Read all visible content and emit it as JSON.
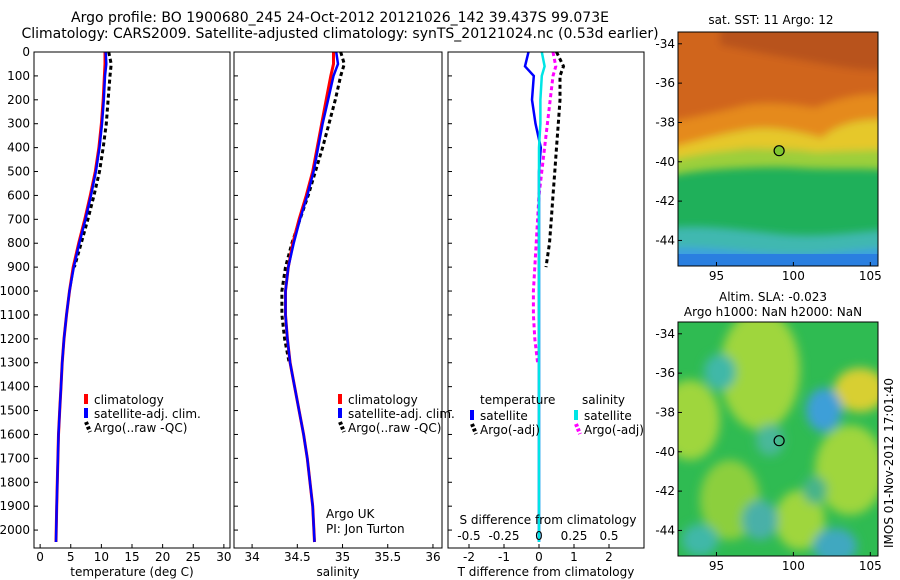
{
  "header": {
    "line1": "Argo profile: BO 1900680_245 24-Oct-2012 20121026_142 39.437S 99.073E",
    "line2": "Climatology: CARS2009. Satellite-adjusted climatology: synTS_20121024.nc (0.53d earlier)"
  },
  "colors": {
    "climatology": "#ff0000",
    "satellite": "#0000ff",
    "argo": "#000000",
    "salinity_sat": "#00e5e5",
    "salinity_argo": "#ff00ff"
  },
  "credits": {
    "line1": "Argo UK",
    "line2": "PI: Jon Turton"
  },
  "footer_vertical": "IMOS 01-Nov-2012 17:01:40",
  "chart_data": [
    {
      "type": "line",
      "xlabel": "temperature (deg C)",
      "xlim": [
        -1,
        31
      ],
      "ylim": [
        0,
        2075
      ],
      "xticks": [
        "0",
        "5",
        "10",
        "15",
        "20",
        "25",
        "30"
      ],
      "yticks": [
        "0",
        "100",
        "200",
        "300",
        "400",
        "500",
        "600",
        "700",
        "800",
        "900",
        "1000",
        "1100",
        "1200",
        "1300",
        "1400",
        "1500",
        "1600",
        "1700",
        "1800",
        "1900",
        "2000"
      ],
      "legend": [
        "climatology",
        "satellite-adj. clim.",
        "Argo(..raw -QC)"
      ],
      "series": [
        {
          "name": "climatology",
          "x": [
            10.6,
            10.6,
            10.5,
            10.3,
            10.0,
            9.6,
            9.0,
            8.2,
            7.3,
            6.3,
            5.4,
            4.8,
            4.3,
            3.9,
            3.6,
            3.4,
            3.2,
            3.0,
            2.9,
            2.8,
            2.7,
            2.6
          ],
          "y": [
            0,
            50,
            100,
            200,
            300,
            400,
            500,
            600,
            700,
            800,
            900,
            1000,
            1100,
            1200,
            1300,
            1400,
            1500,
            1600,
            1700,
            1800,
            1900,
            2050
          ]
        },
        {
          "name": "satellite-adj. clim.",
          "x": [
            10.7,
            10.8,
            10.6,
            10.4,
            10.1,
            9.7,
            9.1,
            8.3,
            7.4,
            6.4,
            5.5,
            4.8,
            4.3,
            3.9,
            3.6,
            3.4,
            3.2,
            3.0,
            2.9,
            2.8,
            2.7,
            2.6
          ],
          "y": [
            0,
            50,
            100,
            200,
            300,
            400,
            500,
            600,
            700,
            800,
            900,
            1000,
            1100,
            1200,
            1300,
            1400,
            1500,
            1600,
            1700,
            1800,
            1900,
            2050
          ]
        },
        {
          "name": "Argo(..raw -QC)",
          "x": [
            11.2,
            11.6,
            11.4,
            11.1,
            10.8,
            10.3,
            9.7,
            8.8,
            7.8,
            6.7,
            5.6
          ],
          "y": [
            0,
            50,
            100,
            200,
            300,
            400,
            500,
            600,
            700,
            800,
            900
          ]
        }
      ]
    },
    {
      "type": "line",
      "xlabel": "salinity",
      "xlim": [
        33.8,
        36.1
      ],
      "ylim": [
        0,
        2075
      ],
      "xticks": [
        "34",
        "34.5",
        "35",
        "35.5",
        "36"
      ],
      "legend": [
        "climatology",
        "satellite-adj. clim.",
        "Argo(..raw -QC)"
      ],
      "series": [
        {
          "name": "climatology",
          "x": [
            34.9,
            34.9,
            34.87,
            34.82,
            34.77,
            34.72,
            34.67,
            34.6,
            34.52,
            34.45,
            34.4,
            34.37,
            34.37,
            34.39,
            34.42,
            34.47,
            34.52,
            34.57,
            34.61,
            34.64,
            34.67,
            34.69
          ],
          "y": [
            0,
            50,
            100,
            200,
            300,
            400,
            500,
            600,
            700,
            800,
            900,
            1000,
            1100,
            1200,
            1300,
            1400,
            1500,
            1600,
            1700,
            1800,
            1900,
            2050
          ]
        },
        {
          "name": "satellite-adj. clim.",
          "x": [
            34.93,
            34.95,
            34.9,
            34.84,
            34.78,
            34.73,
            34.68,
            34.61,
            34.53,
            34.46,
            34.4,
            34.37,
            34.37,
            34.39,
            34.42,
            34.47,
            34.52,
            34.57,
            34.61,
            34.64,
            34.67,
            34.69
          ],
          "y": [
            0,
            50,
            100,
            200,
            300,
            400,
            500,
            600,
            700,
            800,
            900,
            1000,
            1100,
            1200,
            1300,
            1400,
            1500,
            1600,
            1700,
            1800,
            1900,
            2050
          ]
        },
        {
          "name": "Argo(..raw -QC)",
          "x": [
            34.98,
            35.02,
            34.98,
            34.92,
            34.85,
            34.78,
            34.7,
            34.62,
            34.53,
            34.44,
            34.37,
            34.33,
            34.33,
            34.36,
            34.41
          ],
          "y": [
            0,
            50,
            100,
            200,
            300,
            400,
            500,
            600,
            700,
            800,
            900,
            1000,
            1100,
            1200,
            1300
          ]
        }
      ]
    },
    {
      "type": "line",
      "xlabel": "T difference from climatology",
      "x2label": "S difference from climatology",
      "xlim": [
        -2.6,
        3.0
      ],
      "x2lim": [
        -0.65,
        0.75
      ],
      "ylim": [
        0,
        2075
      ],
      "xticks": [
        "-2",
        "-1",
        "0",
        "1",
        "2"
      ],
      "x2ticks": [
        "-0.5",
        "-0.25",
        "0",
        "0.25",
        "0.5"
      ],
      "legend_temperature_title": "temperature",
      "legend_salinity_title": "salinity",
      "legend_temperature": [
        "satellite",
        "Argo(-adj)"
      ],
      "legend_salinity": [
        "satellite",
        "Argo(-adj)"
      ],
      "series": [
        {
          "name": "temperature satellite",
          "x": [
            -0.3,
            -0.4,
            -0.15,
            -0.2,
            -0.1,
            0.05,
            0.0,
            0.0,
            0.0,
            0.0,
            0.0,
            0.0,
            0.0,
            0.0,
            0.0,
            0.0,
            0.0,
            0.0,
            0.0,
            0.0,
            0.0
          ],
          "y": [
            0,
            60,
            100,
            200,
            300,
            400,
            500,
            600,
            700,
            800,
            900,
            1000,
            1100,
            1200,
            1300,
            1400,
            1500,
            1600,
            1700,
            1800,
            2050
          ]
        },
        {
          "name": "temperature Argo(-adj)",
          "x": [
            0.5,
            0.7,
            0.6,
            0.6,
            0.55,
            0.5,
            0.45,
            0.4,
            0.35,
            0.3,
            0.2
          ],
          "y": [
            0,
            60,
            100,
            200,
            300,
            400,
            500,
            600,
            700,
            800,
            900
          ]
        },
        {
          "name": "salinity satellite",
          "x": [
            0.02,
            0.04,
            0.02,
            0.01,
            0.01,
            0.0,
            0.0,
            0.0,
            0.0,
            0.0,
            0.0,
            0.0,
            0.0,
            0.0,
            0.0,
            0.0,
            0.0,
            0.0,
            0.0,
            0.0,
            0.0
          ],
          "y": [
            0,
            60,
            100,
            200,
            300,
            400,
            500,
            600,
            700,
            800,
            900,
            1000,
            1100,
            1200,
            1300,
            1400,
            1500,
            1600,
            1700,
            1800,
            2050
          ]
        },
        {
          "name": "salinity Argo(-adj)",
          "x": [
            0.1,
            0.12,
            0.1,
            0.08,
            0.06,
            0.04,
            0.02,
            0.0,
            -0.01,
            -0.02,
            -0.03,
            -0.04,
            -0.04,
            -0.03,
            -0.01
          ],
          "y": [
            0,
            60,
            100,
            200,
            300,
            400,
            500,
            600,
            700,
            800,
            900,
            1000,
            1100,
            1200,
            1300
          ]
        }
      ]
    },
    {
      "type": "heatmap",
      "title": "sat. SST: 11 Argo: 12",
      "xlim": [
        92.5,
        105.5
      ],
      "ylim": [
        -45.3,
        -33.4
      ],
      "xticks": [
        "95",
        "100",
        "105"
      ],
      "yticks": [
        "-34",
        "-36",
        "-38",
        "-40",
        "-42",
        "-44"
      ],
      "marker": {
        "lon": 99.073,
        "lat": -39.437
      }
    },
    {
      "type": "heatmap",
      "title": "Altim. SLA: -0.023",
      "subtitle": "Argo h1000: NaN h2000: NaN",
      "xlim": [
        92.5,
        105.5
      ],
      "ylim": [
        -45.3,
        -33.4
      ],
      "xticks": [
        "95",
        "100",
        "105"
      ],
      "yticks": [
        "-34",
        "-36",
        "-38",
        "-40",
        "-42",
        "-44"
      ],
      "marker": {
        "lon": 99.073,
        "lat": -39.437
      }
    }
  ]
}
